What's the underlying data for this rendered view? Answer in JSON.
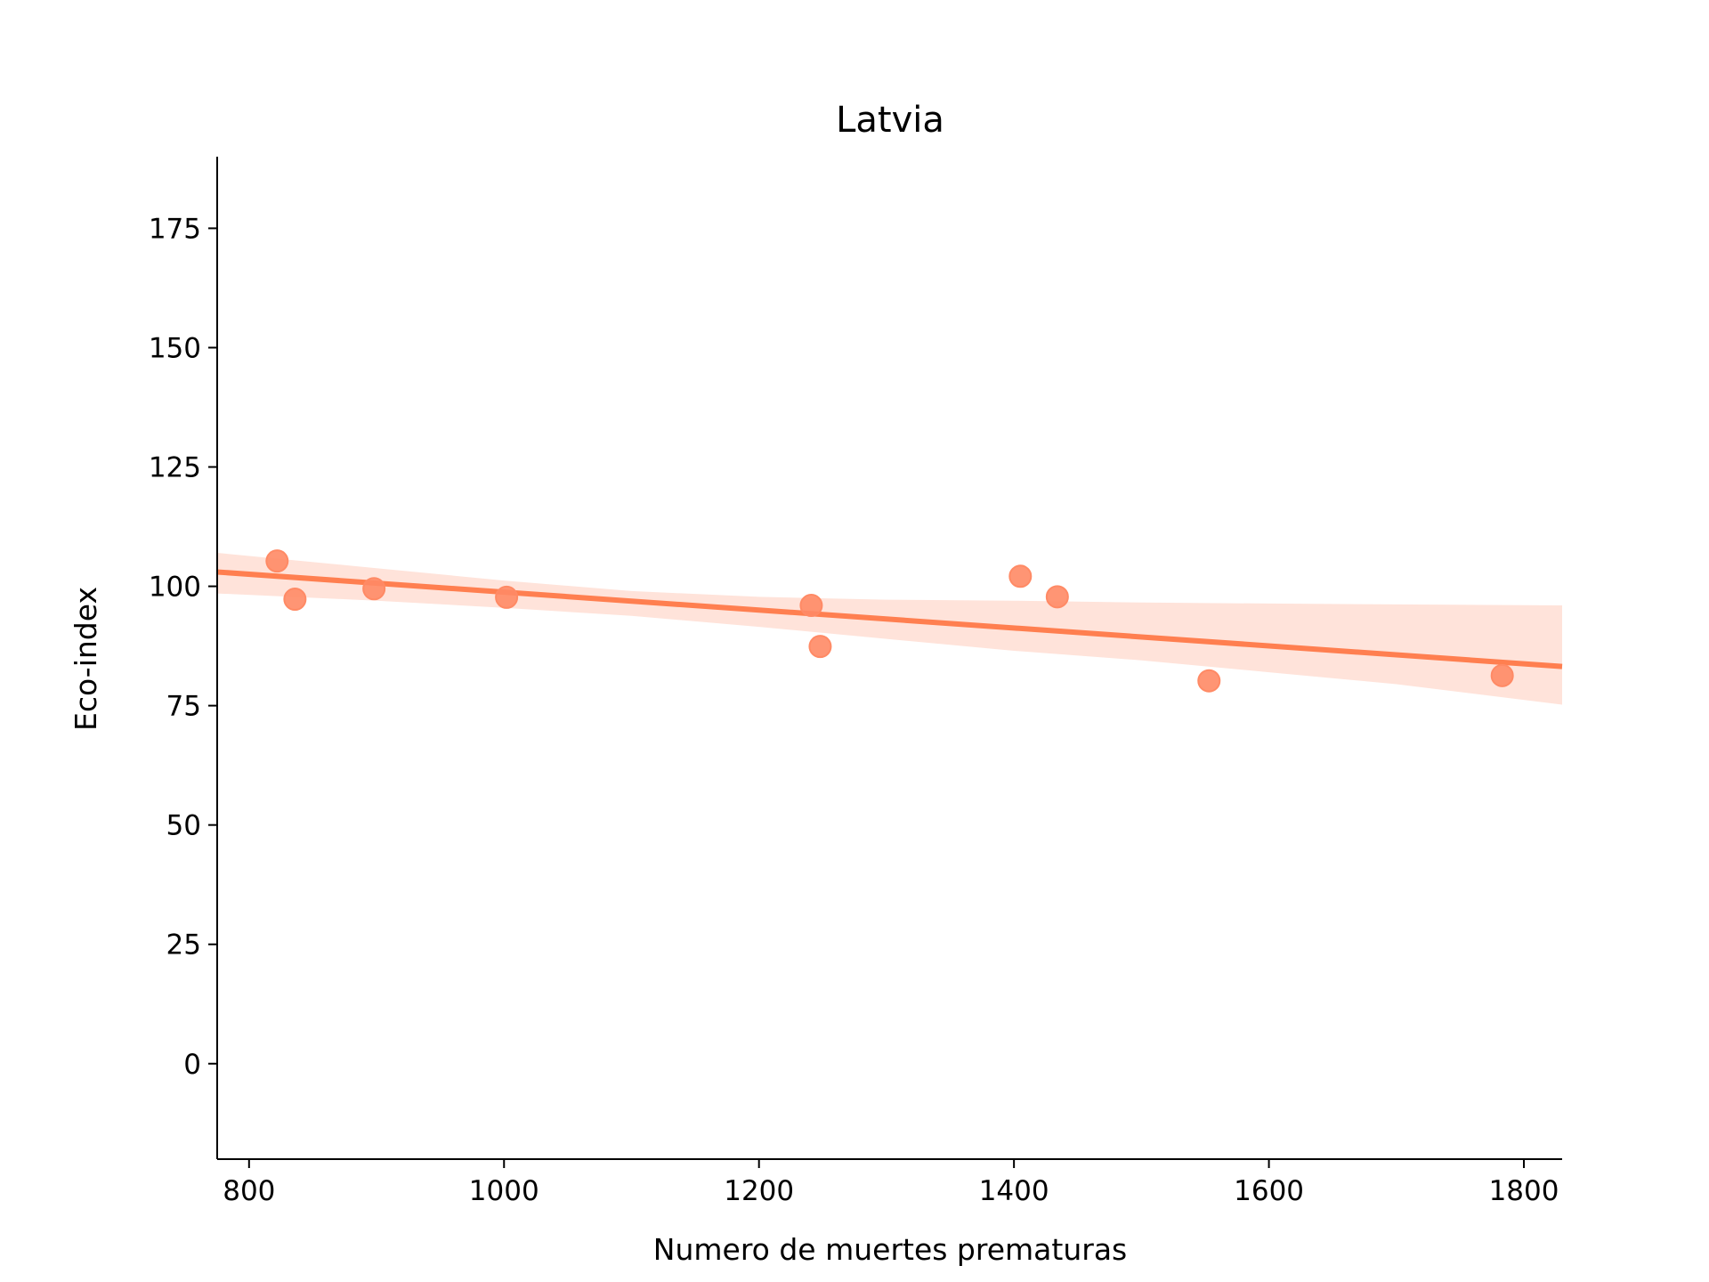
{
  "chart_data": {
    "type": "scatter",
    "title": "Latvia",
    "xlabel": "Numero de muertes prematuras",
    "ylabel": "Eco-index",
    "xlim": [
      775,
      1830
    ],
    "ylim": [
      -20,
      190
    ],
    "xticks": [
      800,
      1000,
      1200,
      1400,
      1600,
      1800
    ],
    "yticks": [
      0,
      25,
      50,
      75,
      100,
      125,
      150,
      175
    ],
    "grid": false,
    "colors": {
      "point": "#FF8A65",
      "line": "#FF7F50",
      "band": "#FFE3DA"
    },
    "points": [
      {
        "x": 822,
        "y": 105.3
      },
      {
        "x": 836,
        "y": 97.3
      },
      {
        "x": 898,
        "y": 99.5
      },
      {
        "x": 1002,
        "y": 97.7
      },
      {
        "x": 1241,
        "y": 96.0
      },
      {
        "x": 1248,
        "y": 87.4
      },
      {
        "x": 1405,
        "y": 102.1
      },
      {
        "x": 1434,
        "y": 97.8
      },
      {
        "x": 1553,
        "y": 80.2
      },
      {
        "x": 1783,
        "y": 81.3
      }
    ],
    "regression": {
      "line": [
        {
          "x": 775,
          "y": 103.0
        },
        {
          "x": 1830,
          "y": 83.2
        }
      ],
      "band_upper": [
        {
          "x": 775,
          "y": 107.0
        },
        {
          "x": 900,
          "y": 103.8
        },
        {
          "x": 1000,
          "y": 101.2
        },
        {
          "x": 1100,
          "y": 99.0
        },
        {
          "x": 1200,
          "y": 97.8
        },
        {
          "x": 1300,
          "y": 97.2
        },
        {
          "x": 1400,
          "y": 97.0
        },
        {
          "x": 1500,
          "y": 96.6
        },
        {
          "x": 1600,
          "y": 96.4
        },
        {
          "x": 1700,
          "y": 96.2
        },
        {
          "x": 1830,
          "y": 96.0
        }
      ],
      "band_lower": [
        {
          "x": 775,
          "y": 98.5
        },
        {
          "x": 900,
          "y": 97.0
        },
        {
          "x": 1000,
          "y": 95.5
        },
        {
          "x": 1100,
          "y": 93.8
        },
        {
          "x": 1200,
          "y": 91.5
        },
        {
          "x": 1300,
          "y": 89.0
        },
        {
          "x": 1400,
          "y": 86.5
        },
        {
          "x": 1500,
          "y": 84.5
        },
        {
          "x": 1600,
          "y": 82.0
        },
        {
          "x": 1700,
          "y": 79.5
        },
        {
          "x": 1830,
          "y": 75.2
        }
      ]
    }
  }
}
